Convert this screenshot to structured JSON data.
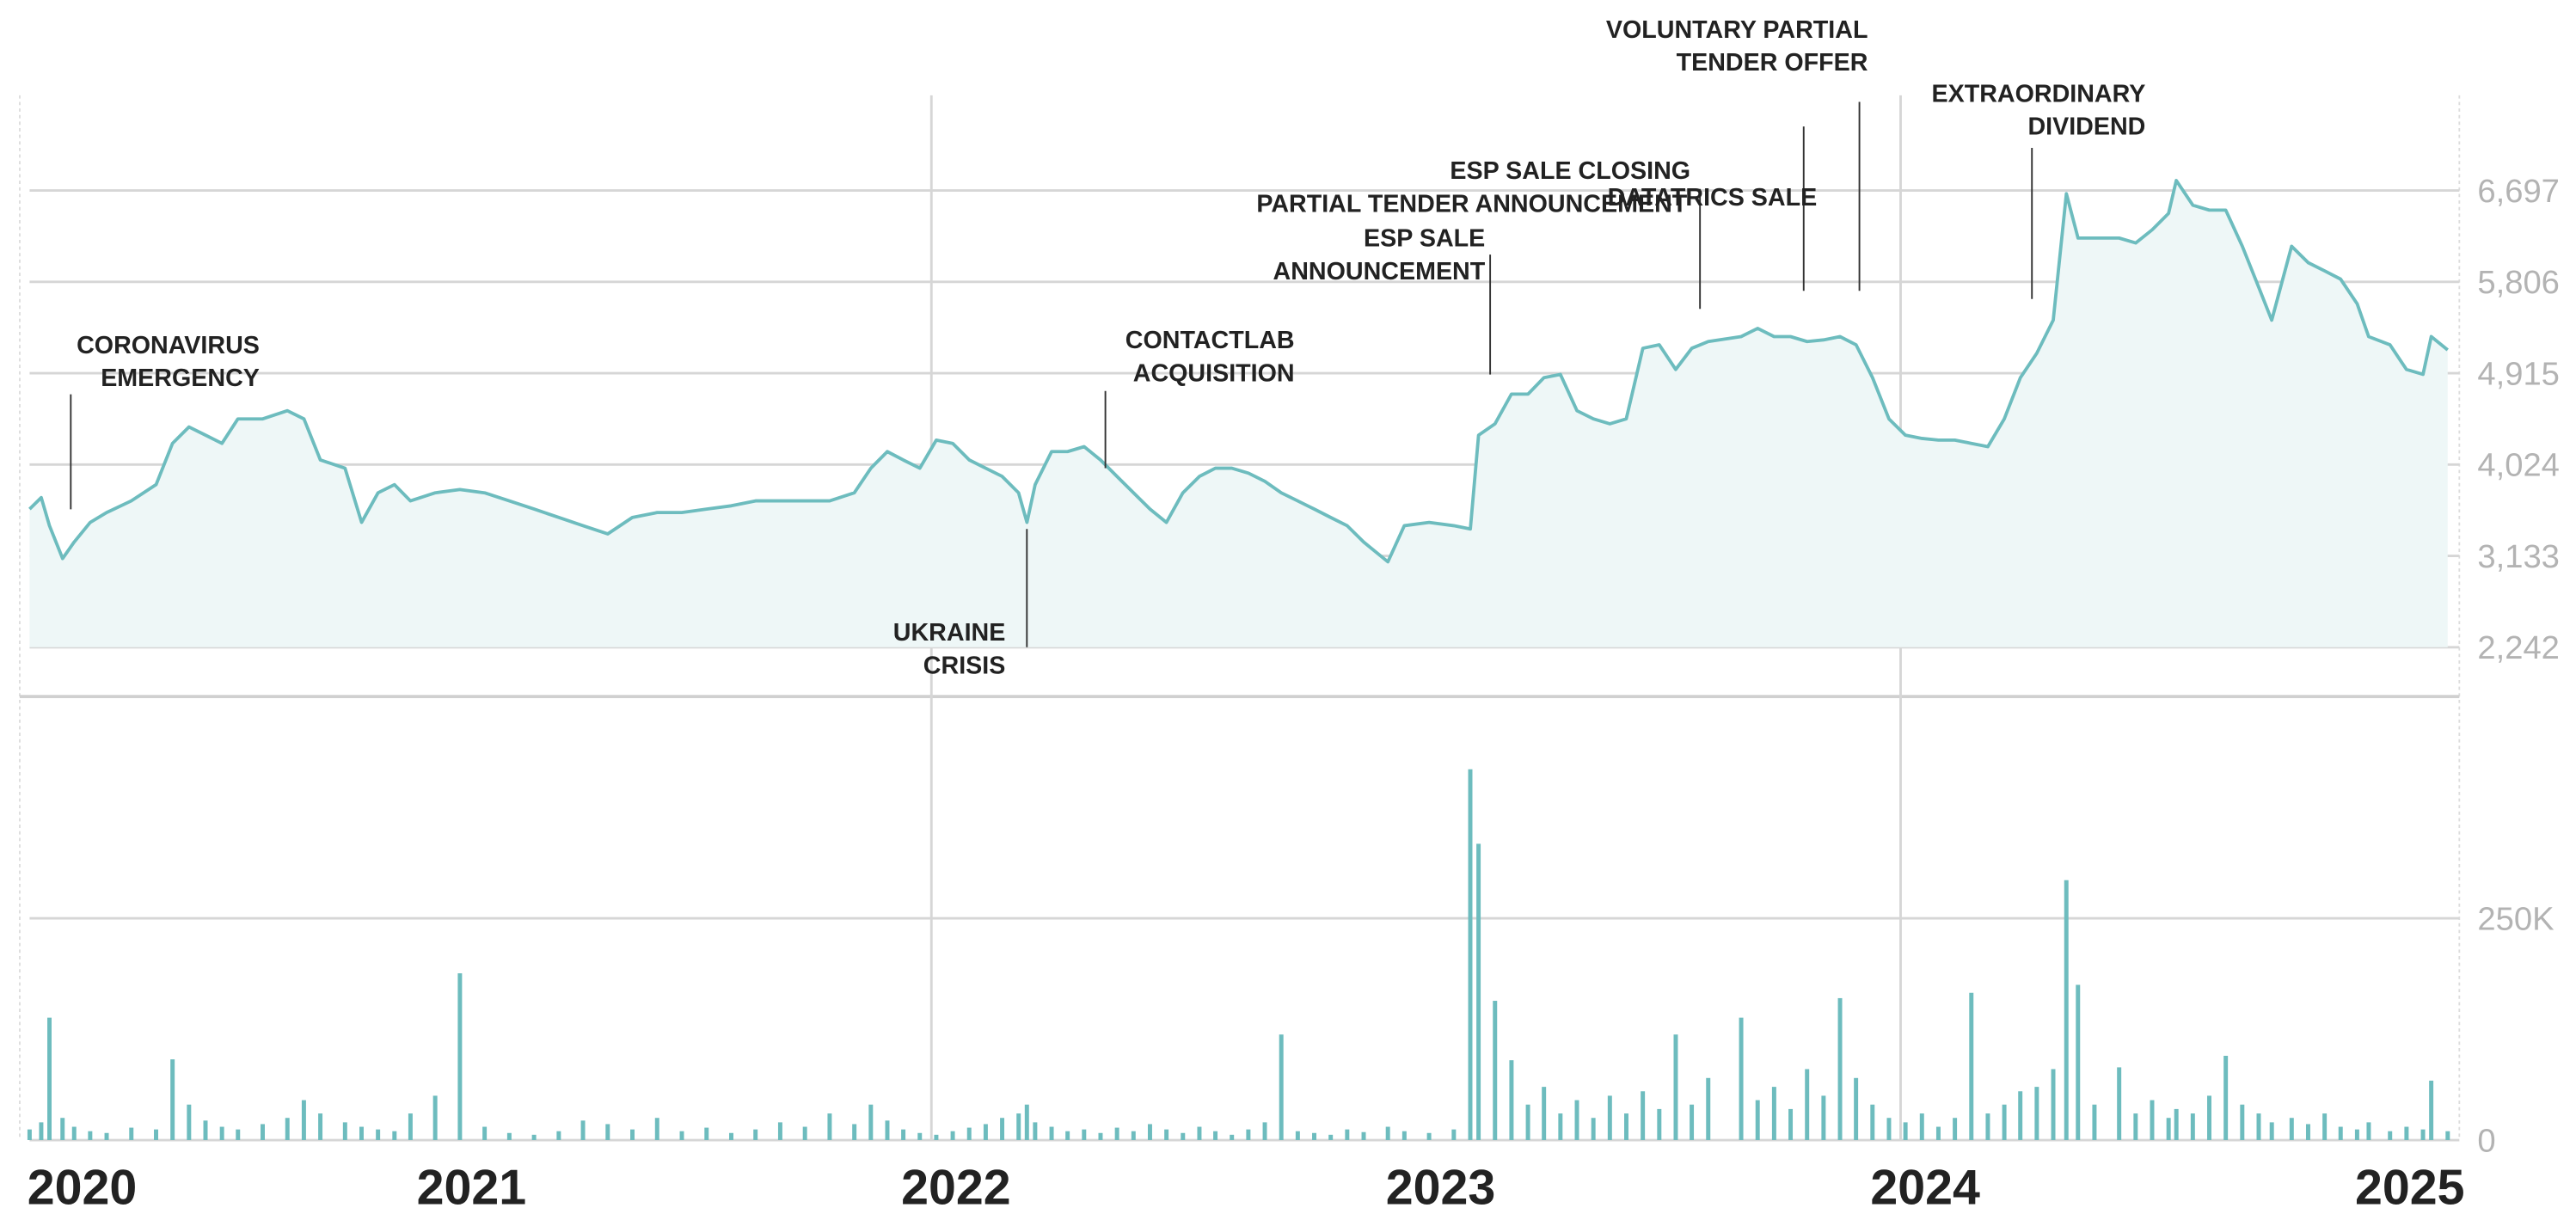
{
  "chart_data": {
    "type": "line",
    "color": "#6dbcbe",
    "fill_color": "#eef7f7",
    "xlim": [
      2020.139,
      2025.153
    ],
    "xticks": [
      2020,
      2021,
      2022,
      2023,
      2024,
      2025
    ],
    "ylim": [
      2242,
      7626
    ],
    "yticks": [
      {
        "value": 2242,
        "label": "2,242"
      },
      {
        "value": 3133,
        "label": "3,133"
      },
      {
        "value": 4024,
        "label": "4,024"
      },
      {
        "value": 4915,
        "label": "4,915"
      },
      {
        "value": 5806,
        "label": "5,806"
      },
      {
        "value": 6697,
        "label": "6,697"
      }
    ],
    "x": [
      2020.139,
      2020.163,
      2020.18,
      2020.207,
      2020.231,
      2020.264,
      2020.298,
      2020.349,
      2020.4,
      2020.434,
      2020.468,
      2020.502,
      2020.536,
      2020.569,
      2020.62,
      2020.671,
      2020.705,
      2020.739,
      2020.79,
      2020.824,
      2020.858,
      2020.892,
      2020.925,
      2020.976,
      2021.027,
      2021.078,
      2021.129,
      2021.18,
      2021.231,
      2021.281,
      2021.332,
      2021.383,
      2021.434,
      2021.485,
      2021.536,
      2021.587,
      2021.637,
      2021.688,
      2021.739,
      2021.79,
      2021.841,
      2021.875,
      2021.909,
      2021.942,
      2021.976,
      2022.01,
      2022.044,
      2022.078,
      2022.112,
      2022.146,
      2022.18,
      2022.197,
      2022.214,
      2022.248,
      2022.281,
      2022.315,
      2022.349,
      2022.383,
      2022.417,
      2022.451,
      2022.485,
      2022.519,
      2022.553,
      2022.586,
      2022.62,
      2022.654,
      2022.688,
      2022.722,
      2022.756,
      2022.79,
      2022.824,
      2022.858,
      2022.892,
      2022.942,
      2022.976,
      2023.027,
      2023.078,
      2023.112,
      2023.129,
      2023.163,
      2023.197,
      2023.231,
      2023.264,
      2023.298,
      2023.332,
      2023.366,
      2023.4,
      2023.434,
      2023.468,
      2023.502,
      2023.536,
      2023.569,
      2023.603,
      2023.671,
      2023.705,
      2023.739,
      2023.773,
      2023.807,
      2023.841,
      2023.875,
      2023.908,
      2023.942,
      2023.976,
      2024.01,
      2024.044,
      2024.078,
      2024.112,
      2024.146,
      2024.18,
      2024.214,
      2024.247,
      2024.281,
      2024.315,
      2024.342,
      2024.366,
      2024.4,
      2024.451,
      2024.485,
      2024.519,
      2024.553,
      2024.569,
      2024.603,
      2024.637,
      2024.671,
      2024.705,
      2024.739,
      2024.766,
      2024.807,
      2024.841,
      2024.875,
      2024.908,
      2024.942,
      2024.966,
      2025.01,
      2025.044,
      2025.078,
      2025.095,
      2025.129
    ],
    "values": [
      3589,
      3701,
      3428,
      3108,
      3268,
      3460,
      3556,
      3669,
      3829,
      4230,
      4390,
      4310,
      4230,
      4470,
      4470,
      4550,
      4470,
      4069,
      3989,
      3460,
      3749,
      3829,
      3669,
      3749,
      3781,
      3749,
      3669,
      3589,
      3508,
      3428,
      3348,
      3508,
      3556,
      3556,
      3589,
      3621,
      3669,
      3669,
      3669,
      3669,
      3749,
      3989,
      4150,
      4069,
      3989,
      4262,
      4230,
      4069,
      3989,
      3909,
      3749,
      3460,
      3829,
      4150,
      4150,
      4198,
      4069,
      3909,
      3749,
      3589,
      3460,
      3749,
      3909,
      3989,
      3989,
      3941,
      3861,
      3749,
      3669,
      3589,
      3508,
      3428,
      3268,
      3076,
      3428,
      3460,
      3428,
      3396,
      4310,
      4422,
      4711,
      4711,
      4871,
      4903,
      4550,
      4470,
      4422,
      4470,
      5159,
      5192,
      4951,
      5159,
      5224,
      5272,
      5352,
      5272,
      5272,
      5224,
      5240,
      5272,
      5192,
      4871,
      4470,
      4310,
      4278,
      4262,
      4262,
      4230,
      4198,
      4470,
      4871,
      5111,
      5432,
      6666,
      6233,
      6233,
      6233,
      6185,
      6314,
      6474,
      6795,
      6554,
      6506,
      6506,
      6153,
      5753,
      5432,
      6153,
      5993,
      5913,
      5833,
      5592,
      5272,
      5192,
      4951,
      4903,
      5272,
      5143
    ],
    "volume": {
      "type": "bar",
      "color": "#6dbcbe",
      "ylim": [
        0,
        500000
      ],
      "yticks": [
        0,
        {
          "value": 250000,
          "label": "250K"
        }
      ],
      "values": [
        12000,
        20000,
        138000,
        25000,
        15000,
        10000,
        8000,
        14000,
        12000,
        91000,
        40000,
        22000,
        15000,
        12000,
        18000,
        25000,
        45000,
        30000,
        20000,
        15000,
        12000,
        10000,
        30000,
        50000,
        188000,
        15000,
        8000,
        6000,
        10000,
        22000,
        18000,
        12000,
        25000,
        10000,
        14000,
        8000,
        12000,
        20000,
        15000,
        30000,
        18000,
        40000,
        22000,
        12000,
        8000,
        6000,
        10000,
        14000,
        18000,
        25000,
        30000,
        40000,
        20000,
        15000,
        10000,
        12000,
        8000,
        14000,
        10000,
        18000,
        12000,
        8000,
        15000,
        10000,
        6000,
        12000,
        20000,
        119000,
        10000,
        8000,
        6000,
        12000,
        9000,
        15000,
        10000,
        8000,
        12000,
        418000,
        334000,
        157000,
        90000,
        40000,
        60000,
        30000,
        45000,
        25000,
        50000,
        30000,
        55000,
        35000,
        119000,
        40000,
        70000,
        138000,
        45000,
        60000,
        35000,
        80000,
        50000,
        160000,
        70000,
        40000,
        25000,
        20000,
        30000,
        15000,
        25000,
        166000,
        30000,
        40000,
        55000,
        60000,
        80000,
        293000,
        175000,
        40000,
        82000,
        30000,
        45000,
        25000,
        35000,
        30000,
        50000,
        95000,
        40000,
        30000,
        20000,
        25000,
        18000,
        30000,
        15000,
        12000,
        20000,
        10000,
        15000,
        12000,
        67000,
        10000
      ]
    },
    "annotations": [
      {
        "lines": [
          "CORONAVIRUS",
          "EMERGENCY"
        ],
        "x": 2020.224
      },
      {
        "lines": [
          "UKRAINE",
          "CRISIS"
        ],
        "x": 2022.197
      },
      {
        "lines": [
          "CONTACTLAB",
          "ACQUISITION"
        ],
        "x": 2022.359
      },
      {
        "lines": [
          "ESP SALE",
          "ANNOUNCEMENT"
        ],
        "x": 2023.153
      },
      {
        "lines": [
          "ESP SALE CLOSING"
        ],
        "x": 2023.586
      },
      {
        "lines": [
          "PARTIAL TENDER ANNOUNCEMENT"
        ],
        "x": 2023.59
      },
      {
        "lines": [
          "DATATRICS SALE"
        ],
        "x": 2023.8
      },
      {
        "lines": [
          "VOLUNTARY PARTIAL",
          "TENDER OFFER"
        ],
        "x": 2023.915
      },
      {
        "lines": [
          "EXTRAORDINARY",
          "DIVIDEND"
        ],
        "x": 2024.271
      }
    ]
  }
}
